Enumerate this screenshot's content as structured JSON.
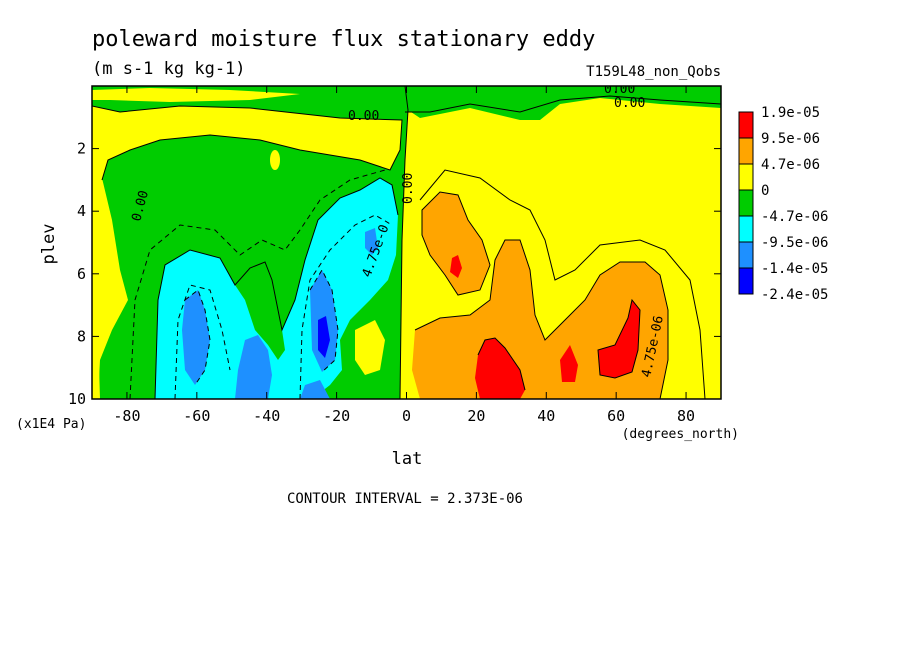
{
  "chart_data": {
    "type": "heatmap",
    "title": "poleward moisture flux stationary eddy",
    "subtitle": "(m s-1 kg kg-1)",
    "run_label": "T159L48_non_Qobs",
    "xlabel": "lat",
    "x_units": "(degrees_north)",
    "ylabel": "plev",
    "y_units": "(x1E4 Pa)",
    "xlim": [
      -90,
      90
    ],
    "ylim": [
      10,
      0
    ],
    "x_ticks": [
      -80,
      -60,
      -40,
      -20,
      0,
      20,
      40,
      60,
      80
    ],
    "x_tick_labels": [
      "-80",
      "-60",
      "-40",
      "-20",
      "0",
      "20",
      "40",
      "60",
      "80"
    ],
    "y_ticks": [
      2,
      4,
      6,
      8,
      10
    ],
    "y_tick_labels": [
      "2",
      "4",
      "6",
      "8",
      "10"
    ],
    "contour_interval_text": "CONTOUR INTERVAL = 2.373E-06",
    "legend": {
      "labels": [
        "1.9e-05",
        "9.5e-06",
        "4.7e-06",
        "0",
        "-4.7e-06",
        "-9.5e-06",
        "-1.4e-05",
        "-2.4e-05"
      ],
      "colors": [
        "#ff0000",
        "#ffa500",
        "#ffff00",
        "#00cc00",
        "#00ffff",
        "#1e90ff",
        "#0000ff"
      ]
    },
    "contour_labels": [
      "0.00",
      "0.00",
      "0.00",
      "0.00",
      "0.00",
      "4.75e-0",
      "4.75e-06"
    ],
    "field_palette": {
      "strong_pos": "#ff0000",
      "pos": "#ffa500",
      "weak_pos": "#ffff00",
      "weak_neg": "#00cc00",
      "neg": "#00ffff",
      "strong_neg": "#1e90ff",
      "extreme_neg": "#0000ff"
    }
  }
}
